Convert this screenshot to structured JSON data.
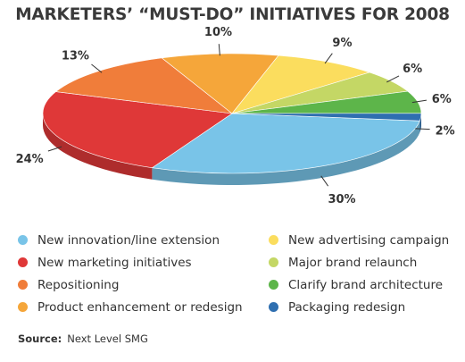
{
  "chart_data": {
    "type": "pie",
    "title": "MARKETERS’ “MUST-DO” INITIATIVES FOR 2008",
    "slices": [
      {
        "name": "New innovation/line extension",
        "value": 30,
        "label": "30%",
        "color": "#79c4e8"
      },
      {
        "name": "New marketing initiatives",
        "value": 24,
        "label": "24%",
        "color": "#df3838"
      },
      {
        "name": "Repositioning",
        "value": 13,
        "label": "13%",
        "color": "#f07d3a"
      },
      {
        "name": "Product enhancement or redesign",
        "value": 10,
        "label": "10%",
        "color": "#f5a63a"
      },
      {
        "name": "New advertising campaign",
        "value": 9,
        "label": "9%",
        "color": "#fbdd5e"
      },
      {
        "name": "Major brand relaunch",
        "value": 6,
        "label": "6%",
        "color": "#c4d765"
      },
      {
        "name": "Clarify brand architecture",
        "value": 6,
        "label": "6%",
        "color": "#5db54a"
      },
      {
        "name": "Packaging redesign",
        "value": 2,
        "label": "2%",
        "color": "#2f6fb0"
      }
    ],
    "legend_order": [
      0,
      4,
      1,
      5,
      2,
      6,
      3,
      7
    ],
    "legend_placement": "bottom",
    "source_label": "Source:",
    "source": "Next Level SMG"
  }
}
